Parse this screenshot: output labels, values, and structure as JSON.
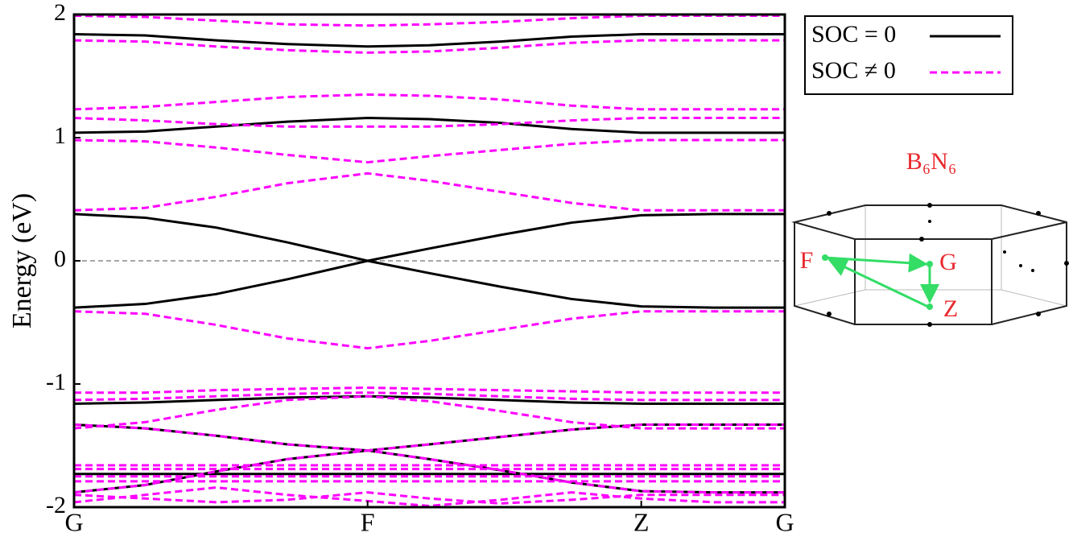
{
  "chart_data": {
    "type": "band",
    "y_label": "Energy (eV)",
    "x": [
      0,
      0.1,
      0.2,
      0.3,
      0.413,
      0.5,
      0.6,
      0.7,
      0.798,
      0.9,
      1
    ],
    "xlim": [
      0,
      1
    ],
    "xticks": [
      {
        "value": 0,
        "label": "G"
      },
      {
        "value": 0.413,
        "label": "F"
      },
      {
        "value": 0.798,
        "label": "Z"
      },
      {
        "value": 1,
        "label": "G"
      }
    ],
    "ylim": [
      -2,
      2
    ],
    "yticks": [
      -2,
      -1,
      0,
      1,
      2
    ],
    "zero_line": true,
    "legend": "top-right",
    "series": [
      {
        "name": "SOC = 0",
        "color": "#000000",
        "dashed": false,
        "bands": [
          [
            1.84,
            1.83,
            1.79,
            1.76,
            1.74,
            1.75,
            1.78,
            1.82,
            1.84,
            1.84,
            1.84
          ],
          [
            1.04,
            1.05,
            1.09,
            1.13,
            1.16,
            1.15,
            1.12,
            1.07,
            1.04,
            1.04,
            1.04
          ],
          [
            0.38,
            0.35,
            0.27,
            0.15,
            0,
            0.1,
            0.21,
            0.31,
            0.37,
            0.38,
            0.38
          ],
          [
            -0.38,
            -0.35,
            -0.27,
            -0.15,
            0,
            -0.1,
            -0.21,
            -0.31,
            -0.37,
            -0.38,
            -0.38
          ],
          [
            -1.16,
            -1.15,
            -1.13,
            -1.11,
            -1.1,
            -1.11,
            -1.13,
            -1.15,
            -1.16,
            -1.16,
            -1.16
          ],
          [
            -1.33,
            -1.36,
            -1.42,
            -1.49,
            -1.54,
            -1.49,
            -1.43,
            -1.37,
            -1.33,
            -1.33,
            -1.33
          ],
          [
            -1.88,
            -1.82,
            -1.71,
            -1.61,
            -1.54,
            -1.61,
            -1.7,
            -1.8,
            -1.87,
            -1.88,
            -1.88
          ],
          [
            -1.73,
            -1.73,
            -1.73,
            -1.73,
            -1.73,
            -1.73,
            -1.73,
            -1.73,
            -1.73,
            -1.73,
            -1.73
          ]
        ]
      },
      {
        "name": "SOC ≠ 0",
        "color": "#ff00ff",
        "dashed": true,
        "bands": [
          [
            1.99,
            1.98,
            1.95,
            1.92,
            1.91,
            1.92,
            1.94,
            1.97,
            1.99,
            1.99,
            1.99
          ],
          [
            1.79,
            1.78,
            1.74,
            1.71,
            1.69,
            1.7,
            1.73,
            1.77,
            1.79,
            1.79,
            1.79
          ],
          [
            1.23,
            1.25,
            1.29,
            1.33,
            1.35,
            1.34,
            1.31,
            1.26,
            1.23,
            1.23,
            1.23
          ],
          [
            1.16,
            1.14,
            1.11,
            1.09,
            1.09,
            1.09,
            1.11,
            1.14,
            1.16,
            1.16,
            1.16
          ],
          [
            0.98,
            0.97,
            0.92,
            0.86,
            0.8,
            0.85,
            0.9,
            0.95,
            0.98,
            0.98,
            0.98
          ],
          [
            0.41,
            0.43,
            0.52,
            0.63,
            0.71,
            0.65,
            0.56,
            0.47,
            0.41,
            0.41,
            0.41
          ],
          [
            -0.41,
            -0.43,
            -0.52,
            -0.63,
            -0.71,
            -0.65,
            -0.56,
            -0.47,
            -0.41,
            -0.41,
            -0.41
          ],
          [
            -1.07,
            -1.07,
            -1.05,
            -1.04,
            -1.03,
            -1.04,
            -1.05,
            -1.06,
            -1.07,
            -1.07,
            -1.07
          ],
          [
            -1.13,
            -1.12,
            -1.1,
            -1.08,
            -1.07,
            -1.08,
            -1.1,
            -1.12,
            -1.13,
            -1.13,
            -1.13
          ],
          [
            -1.36,
            -1.31,
            -1.21,
            -1.13,
            -1.1,
            -1.14,
            -1.22,
            -1.31,
            -1.36,
            -1.36,
            -1.36
          ],
          [
            -1.33,
            -1.36,
            -1.42,
            -1.49,
            -1.54,
            -1.49,
            -1.43,
            -1.37,
            -1.33,
            -1.33,
            -1.33
          ],
          [
            -1.88,
            -1.82,
            -1.71,
            -1.61,
            -1.54,
            -1.61,
            -1.7,
            -1.8,
            -1.87,
            -1.88,
            -1.88
          ],
          [
            -1.66,
            -1.66,
            -1.66,
            -1.66,
            -1.66,
            -1.66,
            -1.66,
            -1.66,
            -1.66,
            -1.66,
            -1.66
          ],
          [
            -1.69,
            -1.69,
            -1.69,
            -1.69,
            -1.69,
            -1.69,
            -1.69,
            -1.69,
            -1.69,
            -1.69,
            -1.69
          ],
          [
            -1.75,
            -1.75,
            -1.75,
            -1.75,
            -1.75,
            -1.75,
            -1.75,
            -1.75,
            -1.75,
            -1.75,
            -1.75
          ],
          [
            -1.79,
            -1.79,
            -1.79,
            -1.79,
            -1.79,
            -1.79,
            -1.79,
            -1.79,
            -1.79,
            -1.79,
            -1.79
          ],
          [
            -1.9,
            -1.93,
            -1.96,
            -1.94,
            -1.88,
            -1.93,
            -1.97,
            -1.94,
            -1.9,
            -1.9,
            -1.9
          ],
          [
            -1.96,
            -1.9,
            -1.84,
            -1.9,
            -1.95,
            -1.99,
            -1.94,
            -1.88,
            -1.93,
            -1.96,
            -1.96
          ]
        ]
      }
    ],
    "inset": {
      "title": "B₆N₆",
      "points": [
        "F",
        "G",
        "Z"
      ]
    }
  }
}
